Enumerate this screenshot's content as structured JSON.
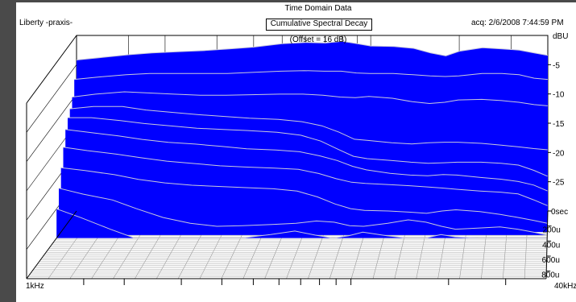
{
  "window": {
    "header": "Time Domain Data",
    "chart_title": "Cumulative Spectral Decay",
    "left_label": "Liberty -praxis-",
    "acq_label": "acq: 2/6/2008 7:44:59 PM"
  },
  "colors": {
    "fill": "#0000ff",
    "outline": "#c8c8dc",
    "axis": "#000000",
    "frame": "#4a4a4a"
  },
  "chart_data": {
    "type": "area",
    "title": "Cumulative Spectral Decay",
    "subtitle": "(Offset = 16 dB)",
    "y_unit": "dBU",
    "y_ticks": [
      "-5",
      "-10",
      "-15",
      "-20",
      "-25"
    ],
    "y_range": [
      -30,
      0
    ],
    "x_range_label": [
      "1kHz",
      "40kHz"
    ],
    "x_scale": "log",
    "x_range": [
      1000,
      40000
    ],
    "time_ticks": [
      "0sec",
      "200u",
      "400u",
      "600u",
      "800u"
    ],
    "time_range": [
      0,
      900
    ],
    "time_unit": "µs",
    "freq_points": [
      1000,
      1200,
      1500,
      1800,
      2200,
      2700,
      3300,
      4000,
      5000,
      6000,
      7000,
      8000,
      9000,
      10000,
      12000,
      14000,
      16000,
      18000,
      20000,
      24000,
      28000,
      32000,
      36000,
      40000
    ],
    "slices": [
      {
        "time": 0,
        "values": [
          -4.2,
          -3.8,
          -3.3,
          -3.0,
          -2.8,
          -2.6,
          -2.3,
          -2.0,
          -1.4,
          -1.2,
          -1.3,
          -1.0,
          -1.4,
          -1.8,
          -1.9,
          -2.2,
          -3.0,
          -3.5,
          -2.7,
          -2.1,
          -2.3,
          -2.5,
          -3.0,
          -3.4
        ]
      },
      {
        "time": 40,
        "values": [
          -7.0,
          -6.6,
          -6.2,
          -6.0,
          -6.0,
          -6.0,
          -6.0,
          -5.8,
          -5.6,
          -5.5,
          -5.6,
          -5.6,
          -5.9,
          -6.0,
          -6.0,
          -6.2,
          -6.4,
          -6.5,
          -6.4,
          -6.0,
          -6.0,
          -6.2,
          -6.8,
          -7.0
        ]
      },
      {
        "time": 80,
        "values": [
          -9.5,
          -9.0,
          -8.6,
          -8.8,
          -9.0,
          -9.2,
          -9.2,
          -9.1,
          -9.0,
          -9.0,
          -9.2,
          -9.5,
          -9.6,
          -9.4,
          -9.7,
          -10.3,
          -10.6,
          -10.4,
          -10.0,
          -9.9,
          -10.1,
          -10.4,
          -10.8,
          -11.0
        ]
      },
      {
        "time": 120,
        "values": [
          -11.0,
          -10.6,
          -10.6,
          -11.2,
          -11.6,
          -12.0,
          -12.3,
          -12.6,
          -12.8,
          -13.2,
          -13.9,
          -15.0,
          -16.2,
          -16.4,
          -16.8,
          -17.0,
          -16.8,
          -16.7,
          -16.7,
          -16.9,
          -17.2,
          -17.5,
          -17.8,
          -18.0
        ]
      },
      {
        "time": 160,
        "values": [
          -12.0,
          -12.0,
          -12.5,
          -13.0,
          -13.4,
          -13.8,
          -14.0,
          -14.2,
          -14.5,
          -15.0,
          -16.0,
          -17.4,
          -18.6,
          -19.0,
          -19.3,
          -19.6,
          -19.8,
          -19.7,
          -19.6,
          -19.6,
          -19.8,
          -20.1,
          -21.0,
          -22.0
        ]
      },
      {
        "time": 200,
        "values": [
          -13.5,
          -14.0,
          -14.6,
          -15.2,
          -15.7,
          -16.0,
          -16.4,
          -16.8,
          -17.0,
          -17.3,
          -18.0,
          -18.8,
          -19.8,
          -20.4,
          -21.0,
          -21.3,
          -21.4,
          -21.2,
          -21.3,
          -21.7,
          -22.0,
          -22.4,
          -23.0,
          -24.0
        ]
      },
      {
        "time": 240,
        "values": [
          -16.0,
          -16.6,
          -17.2,
          -17.8,
          -18.4,
          -18.8,
          -19.2,
          -19.4,
          -19.6,
          -19.8,
          -20.5,
          -21.4,
          -22.0,
          -22.2,
          -22.4,
          -22.6,
          -22.8,
          -23.0,
          -23.2,
          -23.5,
          -23.7,
          -24.0,
          -25.0,
          -26.0
        ]
      },
      {
        "time": 280,
        "values": [
          -19.0,
          -19.5,
          -20.2,
          -21.0,
          -21.6,
          -22.0,
          -22.2,
          -22.4,
          -22.6,
          -23.0,
          -24.0,
          -25.2,
          -26.0,
          -26.3,
          -26.4,
          -26.6,
          -26.8,
          -26.4,
          -26.2,
          -26.5,
          -27.0,
          -27.5,
          -28.0,
          -28.5
        ]
      },
      {
        "time": 320,
        "values": [
          -22.0,
          -23.0,
          -24.0,
          -25.5,
          -27.0,
          -28.0,
          -28.5,
          -28.4,
          -28.2,
          -28.0,
          -27.6,
          -27.8,
          -28.4,
          -28.5,
          -28.0,
          -27.4,
          -27.8,
          -28.5,
          -29.0,
          -28.8,
          -28.6,
          -29.0,
          -29.5,
          -30.0
        ]
      },
      {
        "time": 360,
        "values": [
          -25.0,
          -26.5,
          -28.5,
          -30.0,
          -30.0,
          -30.0,
          -30.0,
          -30.0,
          -29.4,
          -28.8,
          -29.5,
          -30.0,
          -29.6,
          -29.0,
          -29.6,
          -30.0,
          -30.0,
          -29.4,
          -29.8,
          -30.0,
          -30.0,
          -30.0,
          -30.0,
          -30.0
        ]
      }
    ]
  }
}
